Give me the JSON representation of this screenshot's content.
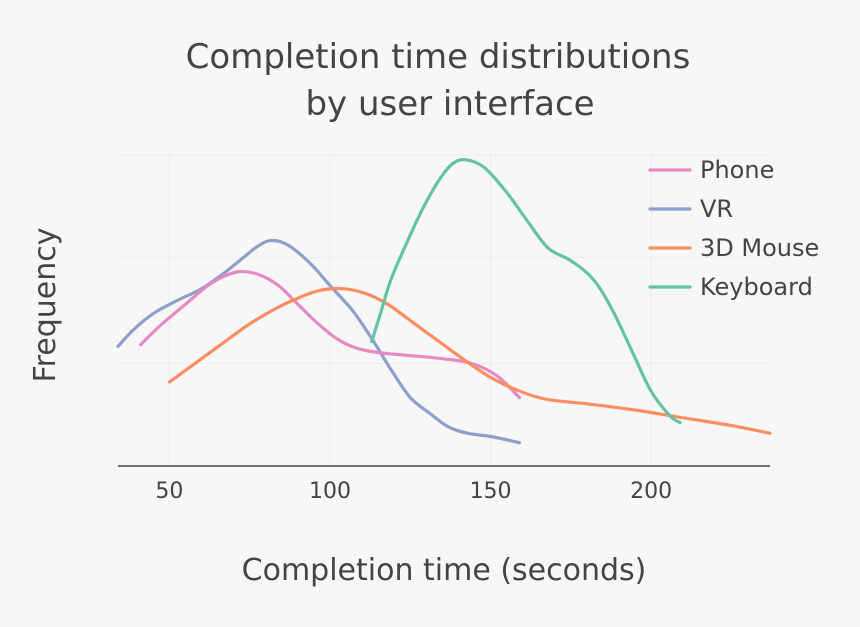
{
  "chart_data": {
    "type": "line",
    "title_lines": [
      "Completion time distributions",
      "by user interface"
    ],
    "xlabel": "Completion time (seconds)",
    "ylabel": "Frequency",
    "xlim": [
      34,
      237
    ],
    "ylim": [
      0,
      1.0
    ],
    "x_ticks": [
      50,
      100,
      150,
      200
    ],
    "y_ticks": [
      0.33,
      0.67,
      1.0
    ],
    "grid": true,
    "legend_position": "top-right",
    "series": [
      {
        "name": "Phone",
        "color": "#e78ac3",
        "points": [
          [
            41,
            0.39
          ],
          [
            47,
            0.45
          ],
          [
            55,
            0.52
          ],
          [
            62,
            0.58
          ],
          [
            67,
            0.61
          ],
          [
            72,
            0.625
          ],
          [
            78,
            0.615
          ],
          [
            84,
            0.58
          ],
          [
            90,
            0.52
          ],
          [
            96,
            0.46
          ],
          [
            102,
            0.41
          ],
          [
            108,
            0.38
          ],
          [
            115,
            0.365
          ],
          [
            125,
            0.355
          ],
          [
            135,
            0.345
          ],
          [
            144,
            0.33
          ],
          [
            152,
            0.29
          ],
          [
            159,
            0.22
          ]
        ]
      },
      {
        "name": "VR",
        "color": "#8da0cb",
        "points": [
          [
            34,
            0.385
          ],
          [
            39,
            0.44
          ],
          [
            45,
            0.49
          ],
          [
            52,
            0.53
          ],
          [
            60,
            0.57
          ],
          [
            67,
            0.62
          ],
          [
            73,
            0.67
          ],
          [
            78,
            0.71
          ],
          [
            82,
            0.725
          ],
          [
            87,
            0.71
          ],
          [
            94,
            0.65
          ],
          [
            100,
            0.58
          ],
          [
            107,
            0.5
          ],
          [
            113,
            0.41
          ],
          [
            119,
            0.31
          ],
          [
            125,
            0.22
          ],
          [
            131,
            0.17
          ],
          [
            137,
            0.125
          ],
          [
            143,
            0.105
          ],
          [
            150,
            0.095
          ],
          [
            159,
            0.075
          ]
        ]
      },
      {
        "name": "3D Mouse",
        "color": "#fc8d62",
        "points": [
          [
            50,
            0.27
          ],
          [
            58,
            0.33
          ],
          [
            66,
            0.39
          ],
          [
            74,
            0.45
          ],
          [
            82,
            0.5
          ],
          [
            90,
            0.54
          ],
          [
            97,
            0.565
          ],
          [
            104,
            0.57
          ],
          [
            111,
            0.555
          ],
          [
            118,
            0.52
          ],
          [
            126,
            0.46
          ],
          [
            134,
            0.4
          ],
          [
            142,
            0.34
          ],
          [
            150,
            0.285
          ],
          [
            158,
            0.245
          ],
          [
            167,
            0.215
          ],
          [
            180,
            0.2
          ],
          [
            195,
            0.18
          ],
          [
            210,
            0.155
          ],
          [
            225,
            0.13
          ],
          [
            237,
            0.105
          ]
        ]
      },
      {
        "name": "Keyboard",
        "color": "#66c2a5",
        "points": [
          [
            113,
            0.4
          ],
          [
            116,
            0.5
          ],
          [
            119,
            0.6
          ],
          [
            124,
            0.72
          ],
          [
            129,
            0.83
          ],
          [
            134,
            0.92
          ],
          [
            138,
            0.97
          ],
          [
            142,
            0.985
          ],
          [
            148,
            0.96
          ],
          [
            155,
            0.88
          ],
          [
            162,
            0.78
          ],
          [
            168,
            0.7
          ],
          [
            175,
            0.66
          ],
          [
            182,
            0.6
          ],
          [
            188,
            0.5
          ],
          [
            194,
            0.37
          ],
          [
            200,
            0.24
          ],
          [
            206,
            0.16
          ],
          [
            209,
            0.14
          ]
        ]
      }
    ]
  }
}
